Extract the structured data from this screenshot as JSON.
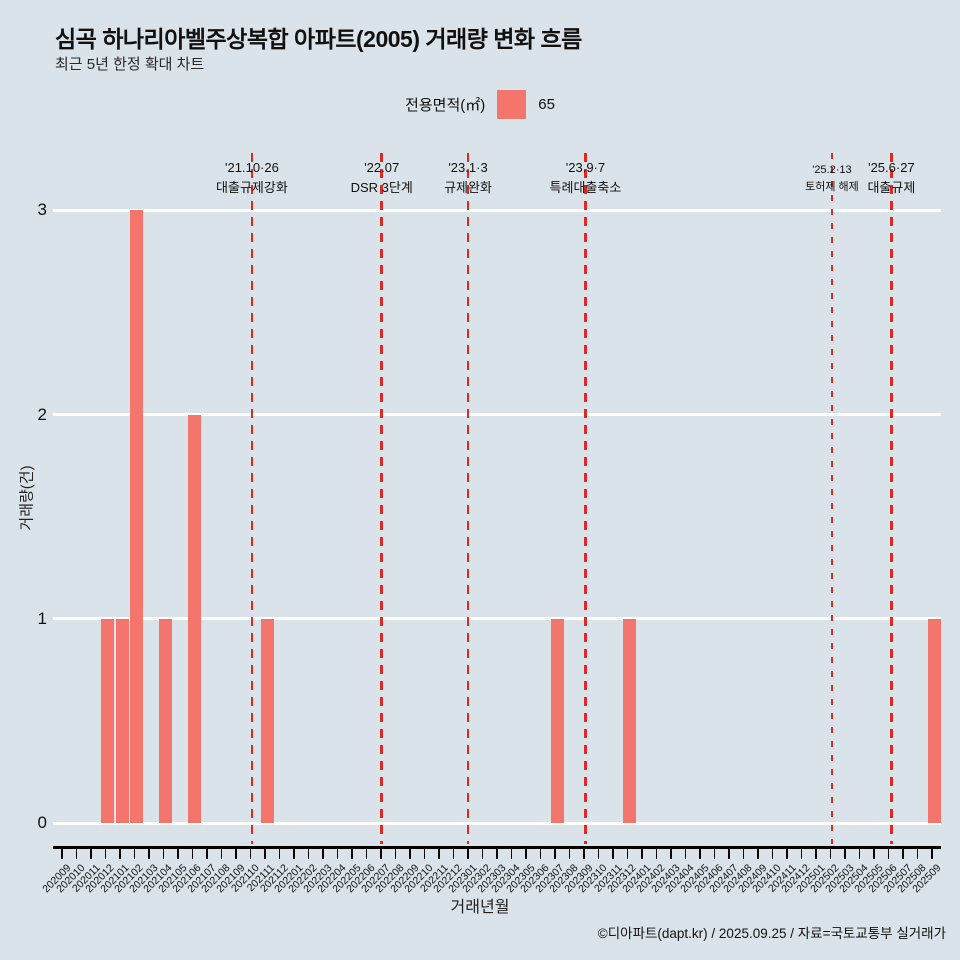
{
  "title": "심곡 하나리아벨주상복합 아파트(2005) 거래량 변화 흐름",
  "subtitle": "최근 5년 한정 확대 차트",
  "legend": {
    "label": "전용면적(㎡)",
    "value": "65"
  },
  "chart_data": {
    "type": "bar",
    "title": "심곡 하나리아벨주상복합 아파트(2005) 거래량 변화 흐름",
    "xlabel": "거래년월",
    "ylabel": "거래량(건)",
    "yticks": [
      0,
      1,
      2,
      3
    ],
    "ylim": [
      0,
      3
    ],
    "grid": "horizontal-white",
    "x": [
      "202009",
      "202010",
      "202011",
      "202012",
      "202101",
      "202102",
      "202103",
      "202104",
      "202105",
      "202106",
      "202107",
      "202108",
      "202109",
      "202110",
      "202111",
      "202112",
      "202201",
      "202202",
      "202203",
      "202204",
      "202205",
      "202206",
      "202207",
      "202208",
      "202209",
      "202210",
      "202211",
      "202212",
      "202301",
      "202302",
      "202303",
      "202304",
      "202305",
      "202306",
      "202307",
      "202308",
      "202309",
      "202310",
      "202311",
      "202312",
      "202401",
      "202402",
      "202403",
      "202404",
      "202405",
      "202406",
      "202407",
      "202408",
      "202409",
      "202410",
      "202411",
      "202412",
      "202501",
      "202502",
      "202503",
      "202504",
      "202505",
      "202506",
      "202507",
      "202508",
      "202509"
    ],
    "values": [
      0,
      0,
      0,
      1,
      1,
      3,
      0,
      1,
      0,
      2,
      0,
      0,
      0,
      0,
      1,
      0,
      0,
      0,
      0,
      0,
      0,
      0,
      0,
      0,
      0,
      0,
      0,
      0,
      0,
      0,
      0,
      0,
      0,
      0,
      1,
      0,
      0,
      0,
      0,
      1,
      0,
      0,
      0,
      0,
      0,
      0,
      0,
      0,
      0,
      0,
      0,
      0,
      0,
      0,
      0,
      0,
      0,
      0,
      0,
      0,
      1
    ],
    "series_name": "65",
    "events": [
      {
        "date": "'21.10·26",
        "label": "대출규제강화",
        "month": "202110",
        "x_index": 13.1,
        "small": false
      },
      {
        "date": "'22.07",
        "label": "DSR 3단계",
        "month": "202207",
        "x_index": 22.05,
        "small": false
      },
      {
        "date": "'23.1·3",
        "label": "규제완화",
        "month": "202301",
        "x_index": 28.0,
        "small": false
      },
      {
        "date": "'23.9·7",
        "label": "특례대출축소",
        "month": "202309",
        "x_index": 36.1,
        "small": false
      },
      {
        "date": "'25.2·13",
        "label": "토허제 해제",
        "month": "202502",
        "x_index": 53.1,
        "small": true
      },
      {
        "date": "'25.6·27",
        "label": "대출규제",
        "month": "202506",
        "x_index": 57.2,
        "small": false
      }
    ]
  },
  "footer": "©디아파트(dapt.kr) / 2025.09.25 / 자료=국토교통부 실거래가",
  "colors": {
    "background": "#d9e3e9",
    "bar": "#f4756b",
    "event_line": "#e02a1f",
    "grid": "#ffffff",
    "axis": "#000000"
  }
}
